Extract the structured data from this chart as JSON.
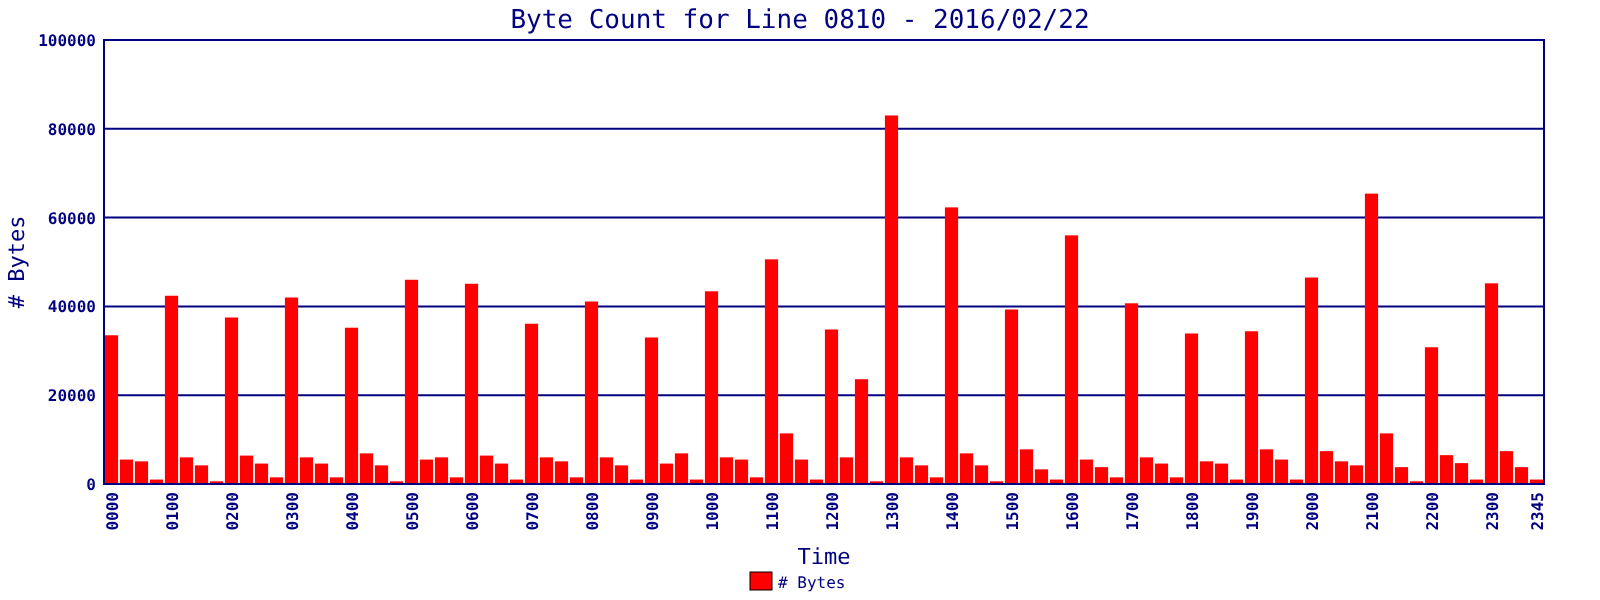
{
  "chart_data": {
    "type": "bar",
    "title": "Byte Count for Line 0810 - 2016/02/22",
    "xlabel": "Time",
    "ylabel": "# Bytes",
    "categories": [
      "0000",
      null,
      null,
      null,
      "0100",
      null,
      null,
      null,
      "0200",
      null,
      null,
      null,
      "0300",
      null,
      null,
      null,
      "0400",
      null,
      null,
      null,
      "0500",
      null,
      null,
      null,
      "0600",
      null,
      null,
      null,
      "0700",
      null,
      null,
      null,
      "0800",
      null,
      null,
      null,
      "0900",
      null,
      null,
      null,
      "1000",
      null,
      null,
      null,
      "1100",
      null,
      null,
      null,
      "1200",
      null,
      null,
      null,
      "1300",
      null,
      null,
      null,
      "1400",
      null,
      null,
      null,
      "1500",
      null,
      null,
      null,
      "1600",
      null,
      null,
      null,
      "1700",
      null,
      null,
      null,
      "1800",
      null,
      null,
      null,
      "1900",
      null,
      null,
      null,
      "2000",
      null,
      null,
      null,
      "2100",
      null,
      null,
      null,
      "2200",
      null,
      null,
      null,
      "2300",
      null,
      null,
      "2345"
    ],
    "series": [
      {
        "name": "# Bytes",
        "color": "#ff0000",
        "values": [
          33500,
          5500,
          5100,
          1000,
          42400,
          6000,
          4200,
          600,
          37500,
          6400,
          4600,
          1500,
          42000,
          6000,
          4600,
          1500,
          35200,
          6900,
          4200,
          600,
          46000,
          5500,
          6000,
          1500,
          45100,
          6400,
          4600,
          1000,
          36100,
          6000,
          5100,
          1500,
          41100,
          6000,
          4200,
          1000,
          33000,
          4600,
          6900,
          1000,
          43400,
          6000,
          5500,
          1500,
          50600,
          11400,
          5500,
          1000,
          34800,
          6000,
          23600,
          600,
          83000,
          6000,
          4200,
          1500,
          62300,
          6900,
          4200,
          600,
          39300,
          7800,
          3300,
          1000,
          56000,
          5500,
          3800,
          1500,
          40700,
          6000,
          4600,
          1500,
          33900,
          5100,
          4600,
          1000,
          34400,
          7800,
          5500,
          1000,
          46500,
          7400,
          5100,
          4200,
          65400,
          11400,
          3800,
          600,
          30800,
          6500,
          4700,
          1000,
          45200,
          7400,
          3800,
          1000
        ]
      }
    ],
    "ylim": [
      0,
      100000
    ],
    "yticks": [
      0,
      20000,
      40000,
      60000,
      80000,
      100000
    ],
    "grid": "y",
    "legend": "bottom"
  }
}
